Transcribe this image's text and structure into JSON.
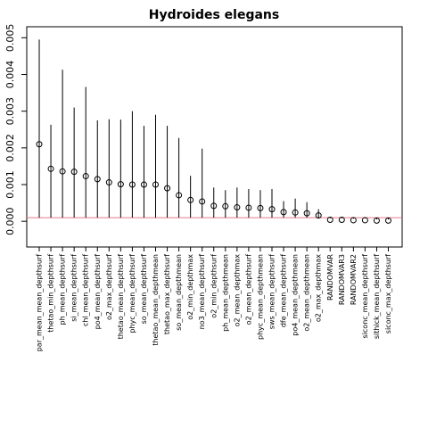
{
  "chart_data": {
    "type": "scatter",
    "title": "Hydroides elegans",
    "xlabel": "",
    "ylabel": "",
    "ylim": [
      -0.0007,
      0.0053
    ],
    "yticks": [
      "0.000",
      "0.001",
      "0.002",
      "0.003",
      "0.004",
      "0.005"
    ],
    "ytick_values": [
      0,
      0.001,
      0.002,
      0.003,
      0.004,
      0.005
    ],
    "baseline": 0.0001,
    "grid": false,
    "colors": {
      "points": "#000000",
      "bars": "#000000",
      "baseline": "#e87a8a",
      "frame": "#000000"
    },
    "points": [
      {
        "label": "par_mean_mean_depthsurf",
        "value": 0.0021,
        "upper": 0.00495
      },
      {
        "label": "thetao_min_depthsurf",
        "value": 0.00143,
        "upper": 0.00263
      },
      {
        "label": "ph_mean_depthsurf",
        "value": 0.00136,
        "upper": 0.00413
      },
      {
        "label": "si_mean_depthsurf",
        "value": 0.00135,
        "upper": 0.0031
      },
      {
        "label": "chl_mean_depthsurf",
        "value": 0.00123,
        "upper": 0.00366
      },
      {
        "label": "po4_mean_depthsurf",
        "value": 0.00115,
        "upper": 0.00275
      },
      {
        "label": "o2_max_depthsurf",
        "value": 0.00106,
        "upper": 0.00278
      },
      {
        "label": "thetao_mean_depthsurf",
        "value": 0.00101,
        "upper": 0.00277
      },
      {
        "label": "phyc_mean_depthsurf",
        "value": 0.001,
        "upper": 0.003
      },
      {
        "label": "so_mean_depthsurf",
        "value": 0.001,
        "upper": 0.0026
      },
      {
        "label": "thetao_mean_depthmean",
        "value": 0.001,
        "upper": 0.0029
      },
      {
        "label": "thetao_max_depthsurf",
        "value": 0.0009,
        "upper": 0.0026
      },
      {
        "label": "so_mean_depthmean",
        "value": 0.00071,
        "upper": 0.00227
      },
      {
        "label": "o2_min_depthmax",
        "value": 0.00058,
        "upper": 0.00124
      },
      {
        "label": "no3_mean_depthsurf",
        "value": 0.00054,
        "upper": 0.00198
      },
      {
        "label": "o2_min_depthsurf",
        "value": 0.00042,
        "upper": 0.00092
      },
      {
        "label": "ph_mean_depthmean",
        "value": 0.00041,
        "upper": 0.00085
      },
      {
        "label": "o2_mean_depthmax",
        "value": 0.00038,
        "upper": 0.00092
      },
      {
        "label": "o2_mean_depthsurf",
        "value": 0.00037,
        "upper": 0.00088
      },
      {
        "label": "phyc_mean_depthmean",
        "value": 0.00036,
        "upper": 0.00085
      },
      {
        "label": "sws_mean_depthsurf",
        "value": 0.00033,
        "upper": 0.00088
      },
      {
        "label": "dfe_mean_depthsurf",
        "value": 0.00025,
        "upper": 0.00055
      },
      {
        "label": "po4_mean_depthmean",
        "value": 0.00024,
        "upper": 0.00062
      },
      {
        "label": "o2_mean_depthmean",
        "value": 0.00022,
        "upper": 0.00052
      },
      {
        "label": "o2_max_depthmax",
        "value": 0.00016,
        "upper": 0.00033
      },
      {
        "label": "RANDOMVAR",
        "value": 4e-05,
        "upper": 8e-05
      },
      {
        "label": "RANDOMVAR3",
        "value": 4e-05,
        "upper": 8e-05
      },
      {
        "label": "RANDOMVAR2",
        "value": 3e-05,
        "upper": 7e-05
      },
      {
        "label": "siconc_mean_depthsurf",
        "value": 3e-05,
        "upper": 8e-05
      },
      {
        "label": "sithick_mean_depthsurf",
        "value": 2e-05,
        "upper": 5e-05
      },
      {
        "label": "siconc_max_depthsurf",
        "value": 2e-05,
        "upper": 5e-05
      }
    ]
  }
}
